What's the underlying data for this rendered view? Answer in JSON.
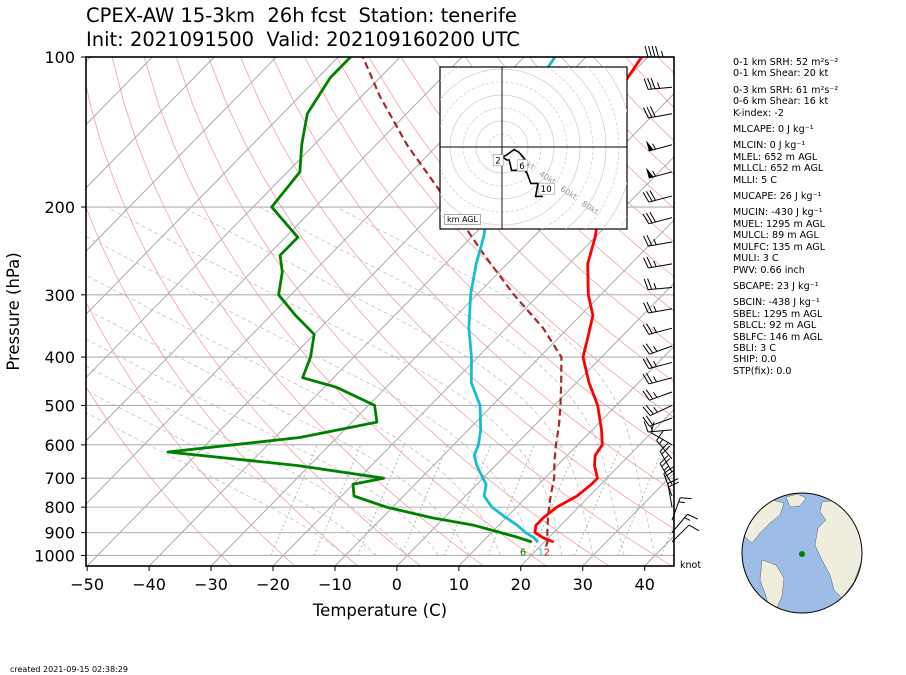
{
  "title": {
    "line1": "CPEX-AW 15-3km  26h fcst  Station: tenerife",
    "line2": "Init: 2021091500  Valid: 202109160200 UTC"
  },
  "footer": {
    "created": "created 2021-09-15 02:38:29"
  },
  "wind_unit": "knot",
  "hodograph": {
    "caption": "km AGL",
    "ring_labels": [
      "20kt",
      "40kt",
      "60kt",
      "80kt"
    ],
    "height_labels": [
      "2",
      "6",
      "10"
    ],
    "trace_uv": [
      [
        10,
        -10
      ],
      [
        10,
        -6
      ],
      [
        9,
        -4
      ],
      [
        7,
        -2
      ],
      [
        5,
        -1
      ],
      [
        2,
        -3
      ],
      [
        0,
        -4
      ],
      [
        -1,
        -3
      ],
      [
        2,
        -5
      ],
      [
        3,
        -5
      ],
      [
        4,
        -9
      ],
      [
        10,
        -9
      ],
      [
        12,
        -14
      ],
      [
        15,
        -14
      ],
      [
        14,
        -19
      ],
      [
        17,
        -19
      ]
    ]
  },
  "indices": [
    {
      "text": "0-1 km SRH: 52 m²s⁻²"
    },
    {
      "text": "0-1 km Shear: 20 kt"
    },
    {
      "text": "0-3 km SRH: 61 m²s⁻²"
    },
    {
      "text": "0-6 km Shear: 16 kt"
    },
    {
      "text": "K-index: -2"
    },
    {
      "text": "MLCAPE: 0 J kg⁻¹"
    },
    {
      "text": "MLCIN: 0 J kg⁻¹"
    },
    {
      "text": "MLEL: 652 m AGL"
    },
    {
      "text": "MLLCL: 652 m AGL"
    },
    {
      "text": "MLLI: 5 C"
    },
    {
      "text": "MUCAPE: 26 J kg⁻¹"
    },
    {
      "text": "MUCIN: -430 J kg⁻¹"
    },
    {
      "text": "MUEL: 1295 m AGL"
    },
    {
      "text": "MULCL: 89 m AGL"
    },
    {
      "text": "MULFC: 135 m AGL"
    },
    {
      "text": "MULI: 3 C"
    },
    {
      "text": "PWV: 0.66 inch"
    },
    {
      "text": "SBCAPE: 23 J kg⁻¹"
    },
    {
      "text": "SBCIN: -438 J kg⁻¹"
    },
    {
      "text": "SBEL: 1295 m AGL"
    },
    {
      "text": "SBLCL: 92 m AGL"
    },
    {
      "text": "SBLFC: 146 m AGL"
    },
    {
      "text": "SBLI: 3 C"
    },
    {
      "text": "SHIP: 0.0"
    },
    {
      "text": "STP(fix): 0.0"
    }
  ],
  "colors": {
    "temperature": "#ff0000",
    "dewpoint": "#008000",
    "wetbulb": "#17becf",
    "parcel": "#a52a2a",
    "isotherm": "#aaaaaa",
    "dry_adiabat": "#f4a0a0",
    "moist_adiabat": "#bbbbbb",
    "mixing_ratio": "#7fbf7f",
    "globe_ocean": "#9dbde6",
    "globe_land": "#efedde",
    "station": "#008000"
  },
  "chart_data": {
    "type": "skew-T log-p sounding",
    "xlabel": "Temperature (C)",
    "ylabel": "Pressure (hPa)",
    "xlim": [
      -50,
      45
    ],
    "ylim": [
      1050,
      100
    ],
    "x_ticks": [
      "−50",
      "−40",
      "−30",
      "−20",
      "−10",
      "0",
      "10",
      "20",
      "30",
      "40"
    ],
    "x_tick_values": [
      -50,
      -40,
      -30,
      -20,
      -10,
      0,
      10,
      20,
      30,
      40
    ],
    "y_ticks": [
      "100",
      "200",
      "300",
      "400",
      "500",
      "600",
      "700",
      "800",
      "900",
      "1000"
    ],
    "y_tick_values": [
      100,
      200,
      300,
      400,
      500,
      600,
      700,
      800,
      900,
      1000
    ],
    "surface_labels": {
      "dewpoint": "6",
      "temperature": "2",
      "wetbulb": "1"
    },
    "temperature": [
      [
        940,
        21.5
      ],
      [
        920,
        19
      ],
      [
        900,
        17
      ],
      [
        870,
        16
      ],
      [
        840,
        16
      ],
      [
        800,
        16.5
      ],
      [
        760,
        18
      ],
      [
        720,
        18.5
      ],
      [
        700,
        18.5
      ],
      [
        660,
        16
      ],
      [
        630,
        14.5
      ],
      [
        600,
        14
      ],
      [
        560,
        11.5
      ],
      [
        500,
        7
      ],
      [
        450,
        2
      ],
      [
        400,
        -3
      ],
      [
        370,
        -5
      ],
      [
        330,
        -8
      ],
      [
        300,
        -12
      ],
      [
        260,
        -17
      ],
      [
        230,
        -20
      ],
      [
        200,
        -24
      ],
      [
        170,
        -30
      ],
      [
        150,
        -35
      ],
      [
        130,
        -38
      ],
      [
        110,
        -40
      ],
      [
        100,
        -41
      ]
    ],
    "wetbulb": [
      [
        940,
        19
      ],
      [
        920,
        17.5
      ],
      [
        900,
        15.5
      ],
      [
        870,
        13
      ],
      [
        840,
        10
      ],
      [
        800,
        6
      ],
      [
        760,
        3
      ],
      [
        720,
        1.5
      ],
      [
        700,
        0
      ],
      [
        660,
        -3
      ],
      [
        630,
        -5
      ],
      [
        600,
        -6
      ],
      [
        560,
        -8
      ],
      [
        500,
        -12
      ],
      [
        450,
        -17
      ],
      [
        400,
        -21
      ],
      [
        350,
        -26
      ],
      [
        300,
        -31
      ],
      [
        260,
        -35
      ],
      [
        230,
        -38
      ],
      [
        200,
        -42
      ],
      [
        170,
        -47
      ],
      [
        150,
        -51
      ],
      [
        130,
        -53
      ],
      [
        110,
        -54
      ],
      [
        100,
        -55
      ]
    ],
    "dewpoint": [
      [
        940,
        18
      ],
      [
        920,
        15
      ],
      [
        900,
        11.5
      ],
      [
        870,
        6
      ],
      [
        840,
        -2
      ],
      [
        800,
        -11
      ],
      [
        760,
        -18
      ],
      [
        720,
        -20
      ],
      [
        700,
        -16
      ],
      [
        660,
        -32
      ],
      [
        620,
        -55
      ],
      [
        580,
        -36
      ],
      [
        540,
        -26
      ],
      [
        500,
        -29
      ],
      [
        460,
        -38
      ],
      [
        440,
        -45
      ],
      [
        400,
        -47
      ],
      [
        360,
        -50
      ],
      [
        330,
        -56
      ],
      [
        300,
        -62
      ],
      [
        270,
        -65
      ],
      [
        250,
        -68
      ],
      [
        230,
        -68
      ],
      [
        200,
        -77
      ],
      [
        170,
        -78
      ],
      [
        150,
        -82
      ],
      [
        130,
        -86
      ],
      [
        110,
        -88
      ],
      [
        100,
        -88
      ]
    ],
    "parcel": [
      [
        960,
        21
      ],
      [
        940,
        20.5
      ],
      [
        900,
        19
      ],
      [
        860,
        17.5
      ],
      [
        820,
        16
      ],
      [
        780,
        14.5
      ],
      [
        740,
        13
      ],
      [
        700,
        11.5
      ],
      [
        650,
        9
      ],
      [
        600,
        6.5
      ],
      [
        550,
        4
      ],
      [
        500,
        1
      ],
      [
        450,
        -2.5
      ],
      [
        400,
        -6.5
      ],
      [
        350,
        -14
      ],
      [
        300,
        -24
      ],
      [
        250,
        -35
      ],
      [
        200,
        -48
      ],
      [
        150,
        -65
      ],
      [
        120,
        -77
      ],
      [
        100,
        -86
      ]
    ],
    "wind_barbs": [
      {
        "p": 100,
        "dir": 270,
        "spd": 45
      },
      {
        "p": 115,
        "dir": 265,
        "spd": 35
      },
      {
        "p": 130,
        "dir": 260,
        "spd": 30
      },
      {
        "p": 150,
        "dir": 255,
        "spd": 55
      },
      {
        "p": 170,
        "dir": 255,
        "spd": 55
      },
      {
        "p": 190,
        "dir": 255,
        "spd": 30
      },
      {
        "p": 210,
        "dir": 255,
        "spd": 30
      },
      {
        "p": 235,
        "dir": 260,
        "spd": 25
      },
      {
        "p": 260,
        "dir": 260,
        "spd": 25
      },
      {
        "p": 290,
        "dir": 265,
        "spd": 25
      },
      {
        "p": 320,
        "dir": 260,
        "spd": 25
      },
      {
        "p": 350,
        "dir": 255,
        "spd": 25
      },
      {
        "p": 380,
        "dir": 250,
        "spd": 25
      },
      {
        "p": 410,
        "dir": 255,
        "spd": 25
      },
      {
        "p": 440,
        "dir": 255,
        "spd": 25
      },
      {
        "p": 470,
        "dir": 250,
        "spd": 25
      },
      {
        "p": 500,
        "dir": 245,
        "spd": 25
      },
      {
        "p": 530,
        "dir": 250,
        "spd": 20
      },
      {
        "p": 560,
        "dir": 265,
        "spd": 15
      },
      {
        "p": 600,
        "dir": 300,
        "spd": 10
      },
      {
        "p": 640,
        "dir": 320,
        "spd": 15
      },
      {
        "p": 680,
        "dir": 330,
        "spd": 20
      },
      {
        "p": 720,
        "dir": 330,
        "spd": 25
      },
      {
        "p": 760,
        "dir": 340,
        "spd": 20
      },
      {
        "p": 800,
        "dir": 350,
        "spd": 20
      },
      {
        "p": 850,
        "dir": 20,
        "spd": 15
      },
      {
        "p": 900,
        "dir": 40,
        "spd": 15
      },
      {
        "p": 940,
        "dir": 45,
        "spd": 10
      }
    ]
  }
}
